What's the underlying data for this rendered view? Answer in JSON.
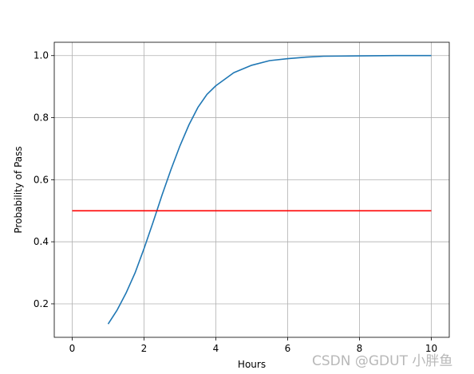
{
  "chart_data": {
    "type": "line",
    "title": "",
    "xlabel": "Hours",
    "ylabel": "Probability of Pass",
    "xlim": [
      -0.5,
      10.5
    ],
    "ylim": [
      0.092,
      1.043
    ],
    "grid": true,
    "x_ticks": [
      0,
      2,
      4,
      6,
      8,
      10
    ],
    "x_tick_labels": [
      "0",
      "2",
      "4",
      "6",
      "8",
      "10"
    ],
    "y_ticks": [
      0.2,
      0.4,
      0.6,
      0.8,
      1.0
    ],
    "y_tick_labels": [
      "0.2",
      "0.4",
      "0.6",
      "0.8",
      "1.0"
    ],
    "series": [
      {
        "color": "#1f77b4",
        "x": [
          1.0,
          1.25,
          1.5,
          1.75,
          2.0,
          2.25,
          2.5,
          2.75,
          3.0,
          3.25,
          3.5,
          3.75,
          4.0,
          4.5,
          5.0,
          5.5,
          6.0,
          6.5,
          7.0,
          8.0,
          9.0,
          10.0
        ],
        "y": [
          0.135,
          0.18,
          0.235,
          0.3,
          0.378,
          0.463,
          0.55,
          0.633,
          0.709,
          0.777,
          0.833,
          0.875,
          0.903,
          0.945,
          0.969,
          0.984,
          0.99,
          0.995,
          0.998,
          0.999,
          1.0,
          1.0
        ]
      },
      {
        "color": "#ff0000",
        "x": [
          0,
          10
        ],
        "y": [
          0.5,
          0.5
        ]
      }
    ]
  },
  "watermark": "CSDN @GDUT 小胖鱼"
}
